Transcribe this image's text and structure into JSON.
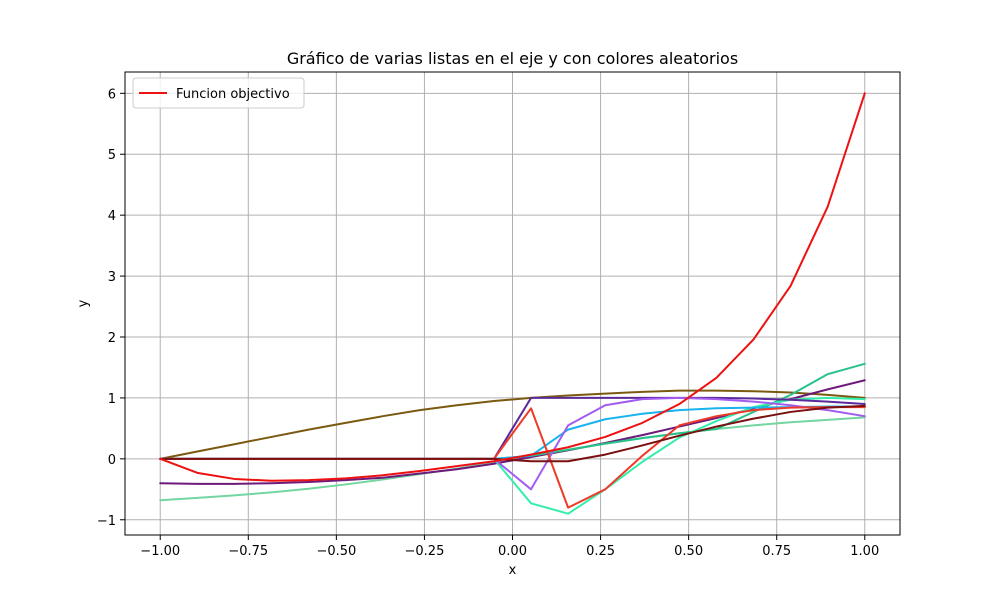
{
  "chart_data": {
    "type": "line",
    "title": "Gráfico de varias listas en el eje y con colores aleatorios",
    "xlabel": "x",
    "ylabel": "y",
    "xlim": [
      -1.1,
      1.1
    ],
    "ylim": [
      -1.25,
      6.35
    ],
    "xticks": [
      -1.0,
      -0.75,
      -0.5,
      -0.25,
      0.0,
      0.25,
      0.5,
      0.75,
      1.0
    ],
    "xtick_labels": [
      "−1.00",
      "−0.75",
      "−0.50",
      "−0.25",
      "0.00",
      "0.25",
      "0.50",
      "0.75",
      "1.00"
    ],
    "yticks": [
      -1,
      0,
      1,
      2,
      3,
      4,
      5,
      6
    ],
    "ytick_labels": [
      "−1",
      "0",
      "1",
      "2",
      "3",
      "4",
      "5",
      "6"
    ],
    "grid": true,
    "legend": {
      "position": "upper-left",
      "entries": [
        {
          "label": "Funcion objectivo",
          "color": "#ee1111"
        }
      ]
    },
    "x": [
      -1.0,
      -0.8947,
      -0.7895,
      -0.6842,
      -0.5789,
      -0.4737,
      -0.3684,
      -0.2632,
      -0.1579,
      -0.0526,
      0.0526,
      0.1579,
      0.2632,
      0.3684,
      0.4737,
      0.5789,
      0.6842,
      0.7895,
      0.8947,
      1.0
    ],
    "series": [
      {
        "name": "Funcion objectivo",
        "color": "#ee1111",
        "width": 2,
        "values": [
          0.0,
          -0.23,
          -0.33,
          -0.36,
          -0.35,
          -0.32,
          -0.27,
          -0.2,
          -0.12,
          -0.04,
          0.07,
          0.19,
          0.36,
          0.59,
          0.9,
          1.33,
          1.96,
          2.84,
          4.14,
          6.0
        ]
      },
      {
        "color": "#7a5a10",
        "values": [
          0.0,
          0.12,
          0.24,
          0.36,
          0.48,
          0.59,
          0.7,
          0.8,
          0.88,
          0.95,
          1.0,
          1.04,
          1.07,
          1.1,
          1.12,
          1.12,
          1.11,
          1.09,
          1.05,
          1.0
        ]
      },
      {
        "color": "#73d6a0",
        "values": [
          -0.68,
          -0.64,
          -0.6,
          -0.55,
          -0.49,
          -0.42,
          -0.34,
          -0.25,
          -0.16,
          -0.06,
          0.05,
          0.15,
          0.25,
          0.34,
          0.42,
          0.49,
          0.55,
          0.6,
          0.64,
          0.68
        ]
      },
      {
        "color": "#6d1a7a",
        "values": [
          -0.4,
          -0.41,
          -0.41,
          -0.4,
          -0.38,
          -0.35,
          -0.31,
          -0.24,
          -0.17,
          -0.08,
          0.03,
          0.14,
          0.26,
          0.39,
          0.53,
          0.67,
          0.83,
          0.98,
          1.14,
          1.29
        ]
      },
      {
        "color": "#27c28a",
        "values": [
          0.0,
          0.0,
          0.0,
          0.0,
          0.0,
          0.0,
          0.0,
          0.0,
          0.0,
          0.0,
          0.05,
          0.15,
          0.25,
          0.34,
          0.42,
          0.49,
          0.77,
          1.05,
          1.39,
          1.56
        ]
      },
      {
        "color": "#33eeaa",
        "values": [
          0.0,
          0.0,
          0.0,
          0.0,
          0.0,
          0.0,
          0.0,
          0.0,
          0.0,
          0.0,
          -0.73,
          -0.9,
          -0.5,
          -0.05,
          0.35,
          0.62,
          0.85,
          0.97,
          1.0,
          0.98
        ]
      },
      {
        "color": "#19b4ee",
        "values": [
          0.0,
          0.0,
          0.0,
          0.0,
          0.0,
          0.0,
          0.0,
          0.0,
          0.0,
          0.0,
          0.05,
          0.48,
          0.65,
          0.74,
          0.8,
          0.83,
          0.84,
          0.85,
          0.86,
          0.86
        ]
      },
      {
        "color": "#5b2a9a",
        "values": [
          0.0,
          0.0,
          0.0,
          0.0,
          0.0,
          0.0,
          0.0,
          0.0,
          0.0,
          0.0,
          1.0,
          1.0,
          1.0,
          1.0,
          1.0,
          1.0,
          0.99,
          0.97,
          0.94,
          0.9
        ]
      },
      {
        "color": "#a25cf0",
        "values": [
          0.0,
          0.0,
          0.0,
          0.0,
          0.0,
          0.0,
          0.0,
          0.0,
          0.0,
          0.0,
          -0.5,
          0.55,
          0.88,
          0.98,
          1.0,
          0.98,
          0.94,
          0.88,
          0.8,
          0.7
        ]
      },
      {
        "color": "#ee3a28",
        "values": [
          0.0,
          0.0,
          0.0,
          0.0,
          0.0,
          0.0,
          0.0,
          0.0,
          0.0,
          0.0,
          0.83,
          -0.8,
          -0.5,
          0.05,
          0.55,
          0.7,
          0.8,
          0.84,
          0.85,
          0.85
        ]
      },
      {
        "color": "#7a1010",
        "values": [
          0.0,
          0.0,
          0.0,
          0.0,
          0.0,
          0.0,
          0.0,
          0.0,
          0.0,
          0.0,
          -0.04,
          -0.04,
          0.07,
          0.22,
          0.38,
          0.53,
          0.66,
          0.77,
          0.84,
          0.87
        ]
      }
    ]
  }
}
